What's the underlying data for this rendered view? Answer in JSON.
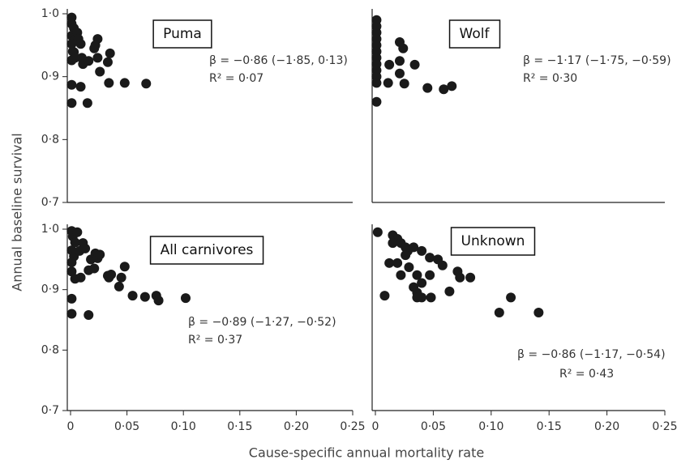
{
  "ylabel": "Annual baseline survival",
  "xlabel": "Cause-specific annual mortality rate",
  "chart_data": [
    {
      "type": "scatter",
      "title": "Puma",
      "annotations": [
        "β = −0·86 (−1·85, 0·13)",
        "R² = 0·07"
      ],
      "x": [
        0.001,
        0.001,
        0.003,
        0.001,
        0.004,
        0.006,
        0.001,
        0.003,
        0.007,
        0.009,
        0.001,
        0.001,
        0.009,
        0.01,
        0.011,
        0.016,
        0.024,
        0.021,
        0.024,
        0.026,
        0.033,
        0.035,
        0.034,
        0.015,
        0.048,
        0.001,
        0.002,
        0.004,
        0.022,
        0.067
      ],
      "y": [
        0.994,
        0.984,
        0.977,
        0.965,
        0.958,
        0.97,
        0.952,
        0.939,
        0.96,
        0.952,
        0.926,
        0.887,
        0.884,
        0.93,
        0.92,
        0.925,
        0.96,
        0.945,
        0.93,
        0.908,
        0.923,
        0.937,
        0.89,
        0.858,
        0.89,
        0.858,
        0.94,
        0.93,
        0.95,
        0.889
      ],
      "color": "#1a1a1a",
      "xlim": [
        0,
        0.25
      ],
      "ylim": [
        0.7,
        1.0
      ],
      "yticks": [
        {
          "value": 0.7,
          "label": "0·7"
        },
        {
          "value": 0.8,
          "label": "0·8"
        },
        {
          "value": 0.9,
          "label": "0·9"
        },
        {
          "value": 1.0,
          "label": "1·0"
        }
      ]
    },
    {
      "type": "scatter",
      "title": "Wolf",
      "annotations": [
        "β = −1·17 (−1·75, −0·59)",
        "R² = 0·30"
      ],
      "x": [
        0.001,
        0.001,
        0.001,
        0.001,
        0.001,
        0.001,
        0.001,
        0.001,
        0.001,
        0.001,
        0.001,
        0.001,
        0.012,
        0.021,
        0.024,
        0.021,
        0.025,
        0.034,
        0.045,
        0.059,
        0.066,
        0.011,
        0.021
      ],
      "y": [
        0.99,
        0.98,
        0.97,
        0.96,
        0.95,
        0.94,
        0.93,
        0.92,
        0.91,
        0.9,
        0.89,
        0.86,
        0.919,
        0.955,
        0.945,
        0.925,
        0.889,
        0.919,
        0.882,
        0.88,
        0.885,
        0.89,
        0.905
      ],
      "color": "#1a1a1a",
      "xlim": [
        0,
        0.25
      ],
      "ylim": [
        0.7,
        1.0
      ]
    },
    {
      "type": "scatter",
      "title": "All carnivores",
      "annotations": [
        "β = −0·89 (−1·27, −0·52)",
        "R² = 0·37"
      ],
      "x": [
        0.001,
        0.002,
        0.004,
        0.001,
        0.003,
        0.001,
        0.001,
        0.004,
        0.001,
        0.001,
        0.006,
        0.011,
        0.008,
        0.013,
        0.016,
        0.018,
        0.022,
        0.024,
        0.026,
        0.033,
        0.034,
        0.036,
        0.043,
        0.045,
        0.048,
        0.055,
        0.066,
        0.076,
        0.078,
        0.102,
        0.016,
        0.009,
        0.021
      ],
      "y": [
        0.997,
        0.988,
        0.978,
        0.965,
        0.955,
        0.945,
        0.93,
        0.918,
        0.885,
        0.86,
        0.995,
        0.977,
        0.964,
        0.968,
        0.932,
        0.95,
        0.96,
        0.952,
        0.958,
        0.923,
        0.92,
        0.925,
        0.905,
        0.92,
        0.938,
        0.89,
        0.888,
        0.89,
        0.882,
        0.886,
        0.858,
        0.92,
        0.935
      ],
      "color": "#1a1a1a",
      "xlim": [
        0,
        0.25
      ],
      "ylim": [
        0.7,
        1.0
      ],
      "xticks": [
        0,
        {
          "value": 0.05,
          "label": "0·05"
        },
        {
          "value": 0.1,
          "label": "0·10"
        },
        {
          "value": 0.15,
          "label": "0·15"
        },
        {
          "value": 0.2,
          "label": "0·20"
        },
        {
          "value": 0.25,
          "label": "0·25"
        }
      ],
      "yticks": [
        {
          "value": 0.7,
          "label": "0·7"
        },
        {
          "value": 0.8,
          "label": "0·8"
        },
        {
          "value": 0.9,
          "label": "0·9"
        },
        {
          "value": 1.0,
          "label": "1·0"
        }
      ]
    },
    {
      "type": "scatter",
      "title": "Unknown",
      "annotations": [
        "β = −0·86 (−1·17, −0·54)",
        "R² = 0·43"
      ],
      "x": [
        0.002,
        0.015,
        0.019,
        0.015,
        0.022,
        0.026,
        0.028,
        0.033,
        0.04,
        0.047,
        0.054,
        0.058,
        0.019,
        0.012,
        0.022,
        0.029,
        0.036,
        0.04,
        0.033,
        0.036,
        0.036,
        0.04,
        0.048,
        0.064,
        0.008,
        0.071,
        0.073,
        0.082,
        0.107,
        0.117,
        0.141,
        0.047,
        0.026
      ],
      "y": [
        0.995,
        0.99,
        0.984,
        0.977,
        0.977,
        0.97,
        0.964,
        0.97,
        0.964,
        0.953,
        0.95,
        0.94,
        0.944,
        0.944,
        0.924,
        0.937,
        0.924,
        0.911,
        0.904,
        0.895,
        0.887,
        0.887,
        0.887,
        0.897,
        0.89,
        0.93,
        0.92,
        0.92,
        0.862,
        0.887,
        0.862,
        0.924,
        0.957
      ],
      "color": "#1a1a1a",
      "xlim": [
        0,
        0.25
      ],
      "ylim": [
        0.7,
        1.0
      ],
      "xticks": [
        0,
        {
          "value": 0.05,
          "label": "0·05"
        },
        {
          "value": 0.1,
          "label": "0·10"
        },
        {
          "value": 0.15,
          "label": "0·15"
        },
        {
          "value": 0.2,
          "label": "0·20"
        },
        {
          "value": 0.25,
          "label": "0·25"
        }
      ]
    }
  ]
}
